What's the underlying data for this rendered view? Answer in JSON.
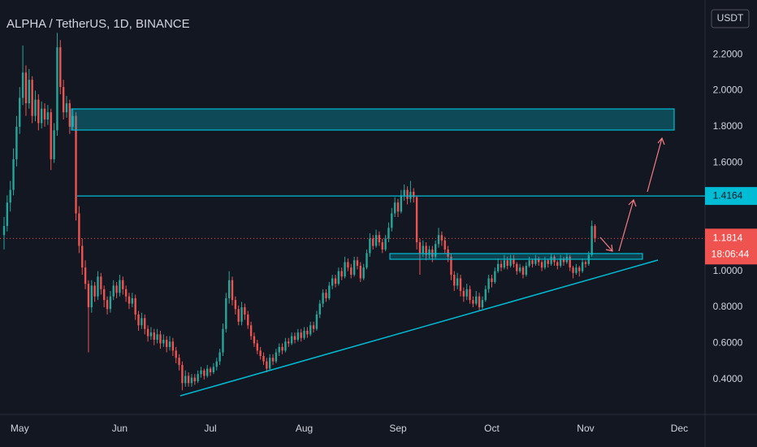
{
  "chart_data": {
    "type": "candlestick",
    "title": "ALPHA / TetherUS, 1D, BINANCE",
    "currency": "USDT",
    "up_color": "#26a69a",
    "down_color": "#ef5350",
    "grid": false,
    "ylim": [
      0.206,
      2.502
    ],
    "xlim": [
      -1.3,
      224.2
    ],
    "yticks": [
      {
        "value": 0.4,
        "label": "0.4000"
      },
      {
        "value": 0.6,
        "label": "0.6000"
      },
      {
        "value": 0.8,
        "label": "0.8000"
      },
      {
        "value": 1.0,
        "label": "1.0000"
      },
      {
        "value": 1.2,
        "label": "1.2000"
      },
      {
        "value": 1.4,
        "label": "1.4000"
      },
      {
        "value": 1.6,
        "label": "1.6000"
      },
      {
        "value": 1.8,
        "label": "1.8000"
      },
      {
        "value": 2.0,
        "label": "2.0000"
      },
      {
        "value": 2.2,
        "label": "2.2000"
      }
    ],
    "xticks": [
      {
        "value": 5,
        "label": "May"
      },
      {
        "value": 37,
        "label": "Jun"
      },
      {
        "value": 66,
        "label": "Jul"
      },
      {
        "value": 96,
        "label": "Aug"
      },
      {
        "value": 126,
        "label": "Sep"
      },
      {
        "value": 156,
        "label": "Oct"
      },
      {
        "value": 186,
        "label": "Nov"
      },
      {
        "value": 216,
        "label": "Dec"
      }
    ],
    "level": {
      "value": 1.4164,
      "label": "1.4164",
      "color": "#00bcd4"
    },
    "last_price": {
      "value": 1.1814,
      "label": "1.1814",
      "countdown": "18:06:44",
      "color": "#ef5350"
    },
    "ohlc": [
      [
        1.2,
        1.3,
        1.12,
        1.25
      ],
      [
        1.25,
        1.42,
        1.22,
        1.38
      ],
      [
        1.38,
        1.5,
        1.33,
        1.45
      ],
      [
        1.45,
        1.68,
        1.42,
        1.62
      ],
      [
        1.62,
        1.86,
        1.58,
        1.8
      ],
      [
        1.8,
        2.02,
        1.76,
        1.96
      ],
      [
        1.96,
        2.25,
        1.92,
        2.1
      ],
      [
        2.1,
        2.14,
        1.86,
        1.93
      ],
      [
        1.93,
        2.12,
        1.9,
        2.06
      ],
      [
        2.06,
        2.08,
        1.82,
        1.86
      ],
      [
        1.86,
        2.0,
        1.83,
        1.95
      ],
      [
        1.95,
        1.98,
        1.78,
        1.82
      ],
      [
        1.82,
        1.94,
        1.79,
        1.9
      ],
      [
        1.9,
        1.93,
        1.8,
        1.84
      ],
      [
        1.84,
        1.92,
        1.81,
        1.88
      ],
      [
        1.88,
        1.9,
        1.56,
        1.62
      ],
      [
        1.62,
        1.82,
        1.6,
        1.78
      ],
      [
        1.78,
        2.32,
        1.75,
        2.24
      ],
      [
        2.24,
        2.28,
        1.98,
        2.02
      ],
      [
        2.02,
        2.06,
        1.84,
        1.88
      ],
      [
        1.88,
        1.97,
        1.85,
        1.93
      ],
      [
        1.93,
        1.95,
        1.76,
        1.8
      ],
      [
        1.8,
        1.9,
        1.78,
        1.86
      ],
      [
        1.86,
        1.88,
        1.28,
        1.32
      ],
      [
        1.32,
        1.36,
        1.1,
        1.14
      ],
      [
        1.14,
        1.18,
        0.98,
        1.02
      ],
      [
        1.02,
        1.06,
        0.9,
        0.93
      ],
      [
        0.93,
        0.95,
        0.55,
        0.8
      ],
      [
        0.8,
        0.95,
        0.77,
        0.92
      ],
      [
        0.92,
        0.94,
        0.83,
        0.86
      ],
      [
        0.86,
        1.0,
        0.84,
        0.97
      ],
      [
        0.97,
        0.99,
        0.87,
        0.9
      ],
      [
        0.9,
        0.92,
        0.8,
        0.84
      ],
      [
        0.84,
        0.86,
        0.76,
        0.79
      ],
      [
        0.79,
        0.89,
        0.77,
        0.86
      ],
      [
        0.86,
        0.95,
        0.84,
        0.92
      ],
      [
        0.92,
        0.94,
        0.85,
        0.88
      ],
      [
        0.88,
        0.98,
        0.86,
        0.95
      ],
      [
        0.95,
        0.97,
        0.87,
        0.9
      ],
      [
        0.9,
        0.92,
        0.83,
        0.86
      ],
      [
        0.86,
        0.88,
        0.79,
        0.82
      ],
      [
        0.82,
        0.88,
        0.8,
        0.85
      ],
      [
        0.85,
        0.87,
        0.73,
        0.76
      ],
      [
        0.76,
        0.78,
        0.67,
        0.7
      ],
      [
        0.7,
        0.77,
        0.68,
        0.74
      ],
      [
        0.74,
        0.76,
        0.65,
        0.68
      ],
      [
        0.68,
        0.7,
        0.61,
        0.64
      ],
      [
        0.64,
        0.69,
        0.62,
        0.66
      ],
      [
        0.66,
        0.68,
        0.59,
        0.62
      ],
      [
        0.62,
        0.68,
        0.6,
        0.65
      ],
      [
        0.65,
        0.67,
        0.57,
        0.6
      ],
      [
        0.6,
        0.65,
        0.58,
        0.62
      ],
      [
        0.62,
        0.64,
        0.55,
        0.58
      ],
      [
        0.58,
        0.64,
        0.56,
        0.61
      ],
      [
        0.61,
        0.63,
        0.53,
        0.56
      ],
      [
        0.56,
        0.58,
        0.49,
        0.52
      ],
      [
        0.52,
        0.54,
        0.45,
        0.48
      ],
      [
        0.48,
        0.5,
        0.34,
        0.38
      ],
      [
        0.38,
        0.45,
        0.36,
        0.42
      ],
      [
        0.42,
        0.44,
        0.36,
        0.38
      ],
      [
        0.38,
        0.43,
        0.36,
        0.41
      ],
      [
        0.41,
        0.43,
        0.37,
        0.39
      ],
      [
        0.39,
        0.45,
        0.38,
        0.43
      ],
      [
        0.43,
        0.47,
        0.41,
        0.45
      ],
      [
        0.45,
        0.46,
        0.4,
        0.42
      ],
      [
        0.42,
        0.48,
        0.41,
        0.46
      ],
      [
        0.46,
        0.47,
        0.42,
        0.44
      ],
      [
        0.44,
        0.49,
        0.43,
        0.47
      ],
      [
        0.47,
        0.52,
        0.45,
        0.5
      ],
      [
        0.5,
        0.57,
        0.48,
        0.55
      ],
      [
        0.55,
        0.71,
        0.53,
        0.68
      ],
      [
        0.68,
        0.88,
        0.66,
        0.85
      ],
      [
        0.85,
        1.0,
        0.82,
        0.95
      ],
      [
        0.95,
        0.97,
        0.81,
        0.84
      ],
      [
        0.84,
        0.86,
        0.76,
        0.79
      ],
      [
        0.79,
        0.81,
        0.7,
        0.72
      ],
      [
        0.72,
        0.83,
        0.7,
        0.8
      ],
      [
        0.8,
        0.82,
        0.73,
        0.76
      ],
      [
        0.76,
        0.78,
        0.68,
        0.7
      ],
      [
        0.7,
        0.72,
        0.62,
        0.64
      ],
      [
        0.64,
        0.66,
        0.58,
        0.6
      ],
      [
        0.6,
        0.62,
        0.54,
        0.56
      ],
      [
        0.56,
        0.58,
        0.51,
        0.53
      ],
      [
        0.53,
        0.55,
        0.48,
        0.5
      ],
      [
        0.5,
        0.52,
        0.44,
        0.46
      ],
      [
        0.46,
        0.54,
        0.45,
        0.52
      ],
      [
        0.52,
        0.54,
        0.48,
        0.5
      ],
      [
        0.5,
        0.57,
        0.49,
        0.55
      ],
      [
        0.55,
        0.6,
        0.53,
        0.58
      ],
      [
        0.58,
        0.6,
        0.54,
        0.56
      ],
      [
        0.56,
        0.63,
        0.55,
        0.61
      ],
      [
        0.61,
        0.63,
        0.58,
        0.6
      ],
      [
        0.6,
        0.66,
        0.59,
        0.64
      ],
      [
        0.64,
        0.66,
        0.6,
        0.62
      ],
      [
        0.62,
        0.68,
        0.61,
        0.66
      ],
      [
        0.66,
        0.68,
        0.61,
        0.63
      ],
      [
        0.63,
        0.69,
        0.62,
        0.67
      ],
      [
        0.67,
        0.69,
        0.63,
        0.65
      ],
      [
        0.65,
        0.72,
        0.64,
        0.7
      ],
      [
        0.7,
        0.72,
        0.66,
        0.68
      ],
      [
        0.68,
        0.78,
        0.67,
        0.76
      ],
      [
        0.76,
        0.84,
        0.74,
        0.82
      ],
      [
        0.82,
        0.9,
        0.8,
        0.88
      ],
      [
        0.88,
        0.9,
        0.83,
        0.85
      ],
      [
        0.85,
        0.94,
        0.84,
        0.92
      ],
      [
        0.92,
        0.98,
        0.9,
        0.96
      ],
      [
        0.96,
        0.98,
        0.91,
        0.93
      ],
      [
        0.93,
        1.02,
        0.92,
        1.0
      ],
      [
        1.0,
        1.02,
        0.95,
        0.97
      ],
      [
        0.97,
        1.08,
        0.96,
        1.05
      ],
      [
        1.05,
        1.07,
        1.0,
        1.02
      ],
      [
        1.02,
        1.04,
        0.96,
        0.98
      ],
      [
        0.98,
        1.08,
        0.97,
        1.06
      ],
      [
        1.06,
        1.08,
        1.01,
        1.03
      ],
      [
        1.03,
        1.05,
        0.94,
        0.96
      ],
      [
        0.96,
        1.04,
        0.95,
        1.02
      ],
      [
        1.02,
        1.12,
        1.01,
        1.1
      ],
      [
        1.1,
        1.21,
        1.08,
        1.18
      ],
      [
        1.18,
        1.2,
        1.12,
        1.14
      ],
      [
        1.14,
        1.23,
        1.13,
        1.2
      ],
      [
        1.2,
        1.22,
        1.14,
        1.16
      ],
      [
        1.16,
        1.18,
        1.1,
        1.12
      ],
      [
        1.12,
        1.2,
        1.11,
        1.18
      ],
      [
        1.18,
        1.27,
        1.16,
        1.24
      ],
      [
        1.24,
        1.35,
        1.22,
        1.32
      ],
      [
        1.32,
        1.41,
        1.3,
        1.38
      ],
      [
        1.38,
        1.4,
        1.3,
        1.33
      ],
      [
        1.33,
        1.45,
        1.32,
        1.42
      ],
      [
        1.42,
        1.48,
        1.39,
        1.45
      ],
      [
        1.45,
        1.47,
        1.37,
        1.4
      ],
      [
        1.4,
        1.5,
        1.38,
        1.44
      ],
      [
        1.44,
        1.46,
        1.38,
        1.41
      ],
      [
        1.41,
        1.42,
        1.12,
        1.16
      ],
      [
        1.16,
        1.18,
        0.98,
        1.1
      ],
      [
        1.1,
        1.17,
        1.08,
        1.14
      ],
      [
        1.14,
        1.16,
        1.06,
        1.09
      ],
      [
        1.09,
        1.14,
        1.07,
        1.12
      ],
      [
        1.12,
        1.14,
        1.05,
        1.08
      ],
      [
        1.08,
        1.17,
        1.07,
        1.15
      ],
      [
        1.15,
        1.24,
        1.13,
        1.2
      ],
      [
        1.2,
        1.22,
        1.14,
        1.17
      ],
      [
        1.17,
        1.19,
        1.1,
        1.12
      ],
      [
        1.12,
        1.14,
        1.05,
        1.08
      ],
      [
        1.08,
        1.1,
        0.95,
        0.98
      ],
      [
        0.98,
        1.0,
        0.89,
        0.92
      ],
      [
        0.92,
        0.99,
        0.9,
        0.96
      ],
      [
        0.96,
        0.98,
        0.86,
        0.89
      ],
      [
        0.89,
        0.91,
        0.83,
        0.86
      ],
      [
        0.86,
        0.93,
        0.84,
        0.9
      ],
      [
        0.9,
        0.92,
        0.82,
        0.84
      ],
      [
        0.84,
        0.86,
        0.8,
        0.82
      ],
      [
        0.82,
        0.89,
        0.81,
        0.86
      ],
      [
        0.86,
        0.88,
        0.78,
        0.8
      ],
      [
        0.8,
        0.86,
        0.79,
        0.84
      ],
      [
        0.84,
        0.92,
        0.83,
        0.9
      ],
      [
        0.9,
        0.98,
        0.88,
        0.96
      ],
      [
        0.96,
        0.98,
        0.91,
        0.94
      ],
      [
        0.94,
        1.02,
        0.93,
        1.0
      ],
      [
        1.0,
        1.07,
        0.99,
        1.04
      ],
      [
        1.04,
        1.06,
        1.0,
        1.02
      ],
      [
        1.02,
        1.09,
        1.01,
        1.06
      ],
      [
        1.06,
        1.08,
        1.01,
        1.03
      ],
      [
        1.03,
        1.09,
        1.02,
        1.07
      ],
      [
        1.07,
        1.09,
        1.02,
        1.04
      ],
      [
        1.04,
        1.05,
        0.98,
        1.0
      ],
      [
        1.0,
        1.04,
        0.99,
        1.02
      ],
      [
        1.02,
        1.03,
        0.96,
        0.98
      ],
      [
        0.98,
        1.05,
        0.97,
        1.03
      ],
      [
        1.03,
        1.08,
        1.02,
        1.06
      ],
      [
        1.06,
        1.07,
        1.02,
        1.04
      ],
      [
        1.04,
        1.09,
        1.03,
        1.07
      ],
      [
        1.07,
        1.08,
        1.03,
        1.05
      ],
      [
        1.05,
        1.06,
        1.0,
        1.02
      ],
      [
        1.02,
        1.08,
        1.01,
        1.06
      ],
      [
        1.06,
        1.07,
        1.02,
        1.04
      ],
      [
        1.04,
        1.1,
        1.03,
        1.08
      ],
      [
        1.08,
        1.09,
        1.03,
        1.05
      ],
      [
        1.05,
        1.06,
        1.01,
        1.03
      ],
      [
        1.03,
        1.09,
        1.02,
        1.07
      ],
      [
        1.07,
        1.08,
        1.03,
        1.05
      ],
      [
        1.05,
        1.1,
        1.04,
        1.08
      ],
      [
        1.08,
        1.09,
        1.0,
        1.02
      ],
      [
        1.02,
        1.03,
        0.96,
        0.99
      ],
      [
        0.99,
        1.04,
        0.98,
        1.02
      ],
      [
        1.02,
        1.03,
        0.97,
        1.0
      ],
      [
        1.0,
        1.07,
        0.99,
        1.05
      ],
      [
        1.05,
        1.06,
        1.02,
        1.04
      ],
      [
        1.04,
        1.11,
        1.03,
        1.09
      ],
      [
        1.09,
        1.28,
        1.08,
        1.25
      ],
      [
        1.25,
        1.26,
        1.16,
        1.1814
      ]
    ]
  }
}
